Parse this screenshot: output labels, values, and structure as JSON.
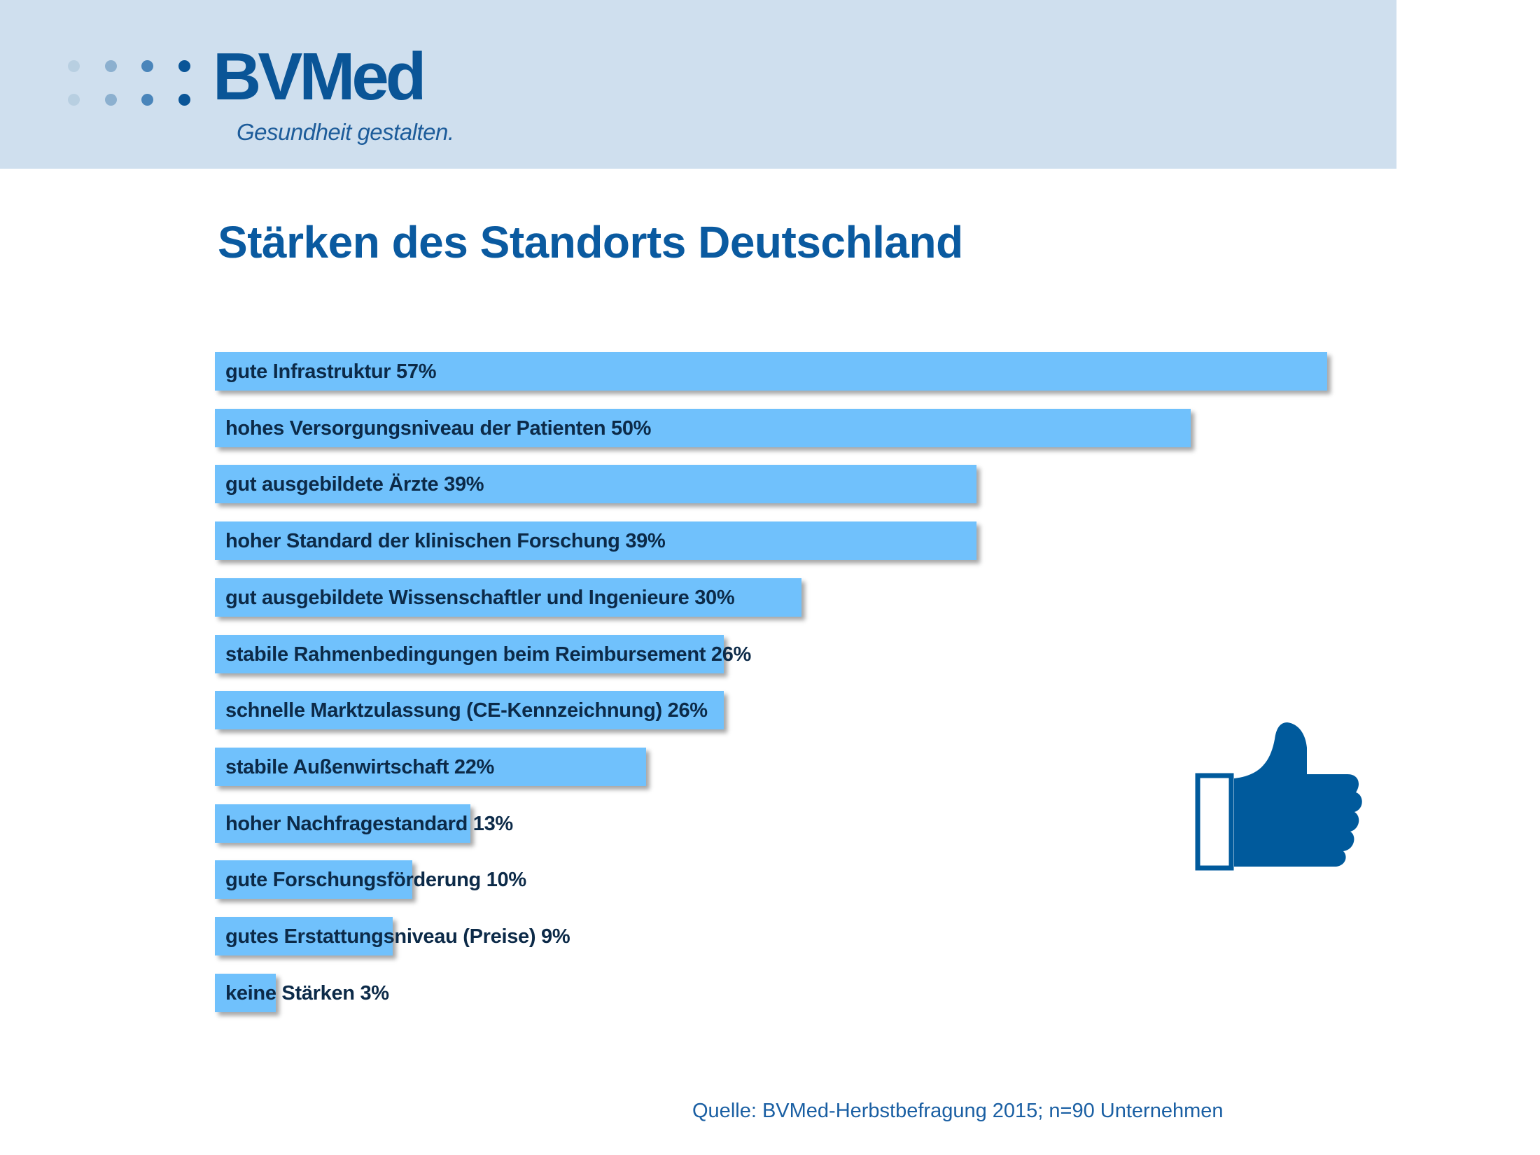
{
  "header": {
    "logo_text": "BVMed",
    "tagline": "Gesundheit gestalten.",
    "band_color": "#cfdfee",
    "logo_dot_colors": [
      "#b8cfe1",
      "#8cb0cf",
      "#4a85ba",
      "#0a5597"
    ]
  },
  "title": "Stärken des Standorts Deutschland",
  "chart_data": {
    "type": "bar",
    "orientation": "horizontal",
    "title": "Stärken des Standorts Deutschland",
    "xlabel": "",
    "ylabel": "",
    "unit": "%",
    "xlim": [
      0,
      57
    ],
    "grid": false,
    "legend": "none",
    "bar_color": "#70c1fc",
    "categories": [
      "gute Infrastruktur",
      "hohes Versorgungsniveau der Patienten",
      "gut ausgebildete Ärzte",
      "hoher Standard der klinischen Forschung",
      "gut ausgebildete Wissenschaftler und Ingenieure",
      "stabile Rahmenbedingungen beim Reimbursement",
      "schnelle Marktzulassung (CE-Kennzeichnung)",
      "stabile Außenwirtschaft",
      "hoher Nachfragestandard",
      "gute Forschungsförderung",
      "gutes Erstattungsniveau (Preise)",
      "keine Stärken"
    ],
    "values": [
      57,
      50,
      39,
      39,
      30,
      26,
      26,
      22,
      13,
      10,
      9,
      3
    ],
    "data_labels": [
      "gute Infrastruktur 57%",
      "hohes Versorgungsniveau der Patienten 50%",
      "gut ausgebildete Ärzte 39%",
      "hoher Standard der klinischen Forschung 39%",
      "gut ausgebildete Wissenschaftler und Ingenieure 30%",
      "stabile Rahmenbedingungen beim Reimbursement 26%",
      "schnelle Marktzulassung (CE-Kennzeichnung) 26%",
      "stabile Außenwirtschaft 22%",
      "hoher Nachfragestandard 13%",
      "gute Forschungsförderung 10%",
      "gutes Erstattungsniveau (Preise) 9%",
      "keine Stärken 3%"
    ]
  },
  "icon": {
    "name": "thumbs-up-icon",
    "color": "#005a9c"
  },
  "source": "Quelle: BVMed-Herbstbefragung 2015; n=90 Unternehmen"
}
